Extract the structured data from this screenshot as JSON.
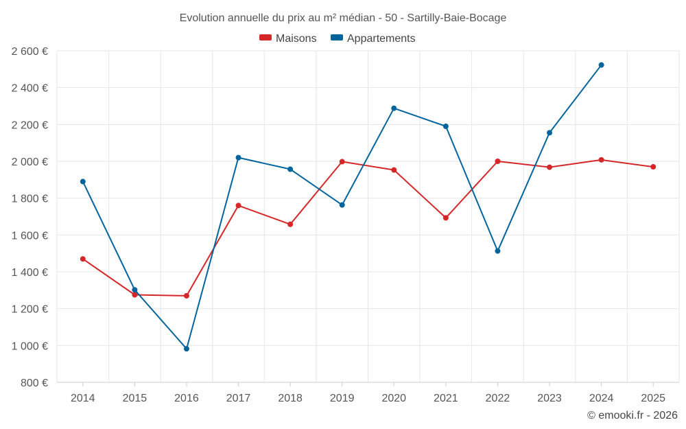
{
  "chart_data": {
    "type": "line",
    "title": "Evolution annuelle du prix au m² médian - 50 - Sartilly-Baie-Bocage",
    "categories": [
      "2014",
      "2015",
      "2016",
      "2017",
      "2018",
      "2019",
      "2020",
      "2021",
      "2022",
      "2023",
      "2024",
      "2025"
    ],
    "series": [
      {
        "name": "Maisons",
        "color": "#d62728",
        "values": [
          1470,
          1275,
          1270,
          1760,
          1658,
          1998,
          1953,
          1693,
          2000,
          1968,
          2008,
          1970
        ]
      },
      {
        "name": "Appartements",
        "color": "#00649c",
        "values": [
          1890,
          1302,
          982,
          2020,
          1957,
          1763,
          2288,
          2190,
          1513,
          2155,
          2523,
          null
        ]
      }
    ],
    "y_ticks": [
      "800 €",
      "1 000 €",
      "1 200 €",
      "1 400 €",
      "1 600 €",
      "1 800 €",
      "2 000 €",
      "2 200 €",
      "2 400 €",
      "2 600 €"
    ],
    "y_tick_values": [
      800,
      1000,
      1200,
      1400,
      1600,
      1800,
      2000,
      2200,
      2400,
      2600
    ],
    "ylim": [
      800,
      2600
    ],
    "grid": true,
    "legend_position": "top-center",
    "xlabel": "",
    "ylabel": ""
  },
  "credit": "© emooki.fr - 2026"
}
